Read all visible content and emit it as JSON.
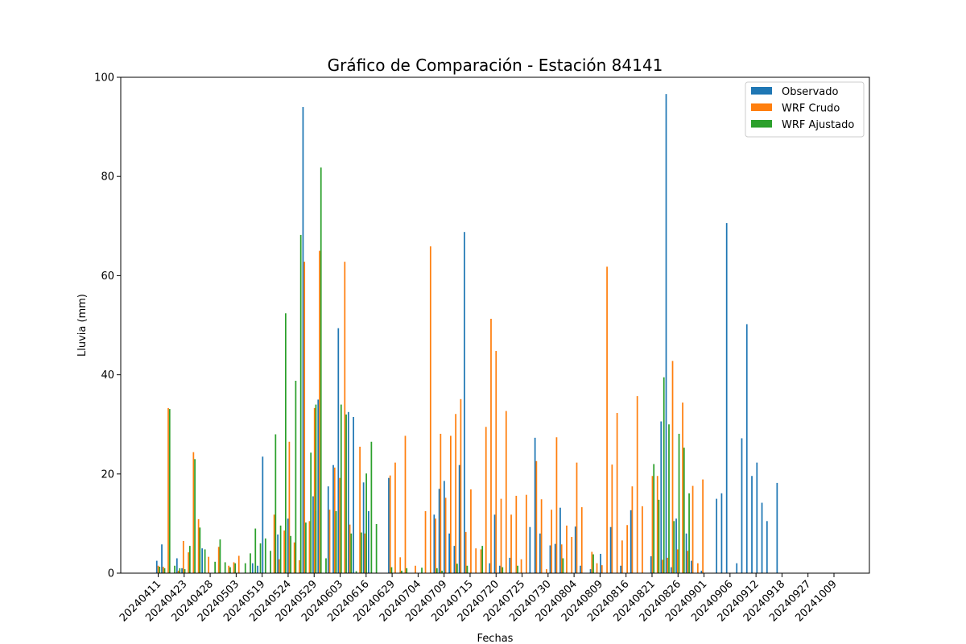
{
  "chart_data": {
    "type": "bar",
    "title": "Gráfico de Comparación - Estación 84141",
    "xlabel": "Fechas",
    "ylabel": "Lluvia (mm)",
    "ylim": [
      0,
      100
    ],
    "yticks": [
      0,
      20,
      40,
      60,
      80,
      100
    ],
    "legend_position": "top-right",
    "xtick_labels": [
      "20240411",
      "20240423",
      "20240428",
      "20240503",
      "20240519",
      "20240524",
      "20240529",
      "20240603",
      "20240616",
      "20240629",
      "20240704",
      "20240709",
      "20240715",
      "20240720",
      "20240725",
      "20240730",
      "20240804",
      "20240809",
      "20240816",
      "20240821",
      "20240826",
      "20240901",
      "20240906",
      "20240912",
      "20240918",
      "20240927",
      "20241009"
    ],
    "x_count": 135,
    "series": [
      {
        "name": "Observado",
        "color": "#1f77b4",
        "values": [
          2.5,
          5.8,
          0,
          0,
          3,
          1,
          0,
          0,
          0,
          5,
          0,
          0,
          0,
          0,
          0,
          0,
          0,
          0,
          0,
          2,
          1.5,
          23.5,
          0,
          0,
          7.8,
          0,
          11,
          0,
          0,
          94,
          0,
          15.5,
          35,
          0,
          17.5,
          21.8,
          49.4,
          0,
          32.5,
          31.5,
          0,
          18.3,
          12.5,
          0,
          0,
          0,
          19.2,
          0,
          0,
          0,
          0,
          0,
          0,
          0,
          0,
          11.8,
          17,
          18.6,
          8,
          5.5,
          21.8,
          68.8,
          0,
          0,
          0,
          0,
          2,
          11.8,
          1.5,
          0,
          3.1,
          0,
          0,
          0,
          9.3,
          27.3,
          8,
          0,
          5.6,
          5.9,
          13.2,
          0,
          0,
          9.4,
          1.5,
          0,
          0.8,
          0,
          3.9,
          0,
          9.3,
          0,
          1.5,
          0,
          12.7,
          0,
          0,
          0,
          3.4,
          0,
          30.6,
          96.6,
          1.2,
          11,
          0,
          8,
          2.5,
          0,
          0.5,
          0,
          0,
          15,
          16.1,
          70.6,
          0,
          2,
          27.2,
          50.2,
          19.6,
          22.3,
          14.2,
          10.5,
          0,
          18.2,
          0,
          0,
          0,
          0,
          0,
          0,
          0,
          0,
          0
        ],
        "values_note": ""
      },
      {
        "name": "WRF Crudo",
        "color": "#ff7f0e",
        "values": [
          1.5,
          1.3,
          33.3,
          0,
          0.5,
          6.5,
          4.2,
          24.4,
          10.9,
          0,
          3.3,
          0,
          5.3,
          0,
          1.5,
          2.2,
          3.5,
          0,
          0,
          0,
          0,
          0,
          0,
          11.8,
          2.8,
          8.6,
          26.5,
          6.2,
          2.6,
          62.8,
          10.5,
          33.3,
          65,
          0,
          12.8,
          21.3,
          19.2,
          62.8,
          9.8,
          0,
          25.5,
          8,
          0,
          0,
          0,
          0,
          19.7,
          22.3,
          3.2,
          27.7,
          0,
          1.5,
          0,
          12.5,
          65.9,
          11,
          28.1,
          15.2,
          27.7,
          32.1,
          35.1,
          8.3,
          16.9,
          5,
          4.8,
          29.5,
          51.3,
          44.8,
          15,
          32.7,
          11.8,
          15.6,
          2.8,
          15.8,
          0,
          22.6,
          14.9,
          0.8,
          12.8,
          27.4,
          5.8,
          9.6,
          7.3,
          22.3,
          13.3,
          0,
          4.3,
          2,
          1.6,
          61.8,
          21.9,
          32.3,
          6.6,
          9.7,
          17.5,
          35.7,
          13.5,
          0,
          19.6,
          19.6,
          2.7,
          3.1,
          42.8,
          4.8,
          34.4,
          4.5,
          17.6,
          2,
          18.9,
          0,
          0,
          0,
          0,
          0,
          0,
          0,
          0,
          0,
          0,
          0,
          0,
          0,
          0,
          0,
          0,
          0,
          0,
          0,
          0,
          0,
          0,
          0,
          0,
          0,
          0
        ],
        "values_note": ""
      },
      {
        "name": "WRF Ajustado",
        "color": "#2ca02c",
        "values": [
          1.3,
          1,
          33.1,
          1.5,
          1,
          0.8,
          5.5,
          23,
          9.2,
          4.8,
          0,
          2.3,
          6.8,
          2.2,
          1.2,
          2,
          0,
          2,
          4,
          9,
          6,
          7,
          4.5,
          28,
          9.6,
          52.4,
          7.5,
          38.8,
          68.2,
          10.2,
          24.3,
          34,
          81.8,
          3,
          0,
          12.5,
          34,
          32,
          8,
          0.4,
          8.2,
          20.1,
          26.5,
          9.9,
          0,
          0,
          1.2,
          0,
          0.5,
          1,
          0,
          0,
          1.1,
          0,
          0,
          1,
          0.5,
          0,
          0,
          1.9,
          0,
          1.5,
          0,
          0,
          5.5,
          0,
          0,
          0,
          1.2,
          0,
          0,
          1.5,
          0,
          0,
          0,
          0,
          0,
          0,
          0,
          0,
          3,
          0,
          0,
          0,
          0,
          0,
          3.8,
          0,
          0,
          0,
          0,
          0,
          0,
          0,
          0,
          0,
          0,
          0,
          22,
          14.8,
          39.5,
          30,
          10.5,
          28.1,
          25.3,
          16.1,
          0,
          0,
          0,
          0,
          0,
          0,
          0,
          0,
          0,
          0,
          0,
          0,
          0,
          0,
          0,
          0,
          0,
          0,
          0,
          0,
          0,
          0,
          0,
          0,
          0,
          0,
          0,
          0,
          0,
          0,
          0
        ],
        "values_note": ""
      }
    ]
  }
}
